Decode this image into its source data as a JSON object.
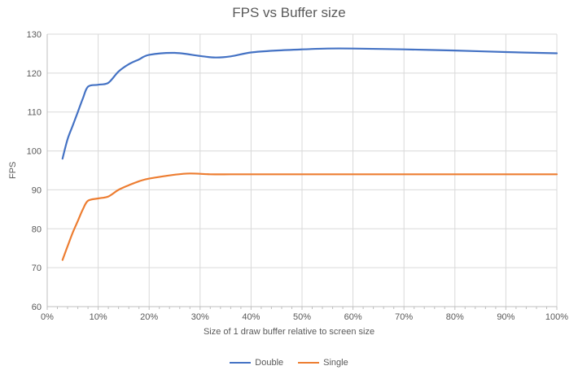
{
  "chart_data": {
    "type": "line",
    "title": "FPS vs Buffer size",
    "xlabel": "Size of 1 draw buffer relative to screen size",
    "ylabel": "FPS",
    "xlim": [
      0,
      100
    ],
    "ylim": [
      60,
      130
    ],
    "grid": true,
    "legend_position": "bottom",
    "x_ticks": [
      {
        "value": 0,
        "label": "0%"
      },
      {
        "value": 10,
        "label": "10%"
      },
      {
        "value": 20,
        "label": "20%"
      },
      {
        "value": 30,
        "label": "30%"
      },
      {
        "value": 40,
        "label": "40%"
      },
      {
        "value": 50,
        "label": "50%"
      },
      {
        "value": 60,
        "label": "60%"
      },
      {
        "value": 70,
        "label": "70%"
      },
      {
        "value": 80,
        "label": "80%"
      },
      {
        "value": 90,
        "label": "90%"
      },
      {
        "value": 100,
        "label": "100%"
      }
    ],
    "x_minor_tick_step": 2,
    "y_ticks": [
      60,
      70,
      80,
      90,
      100,
      110,
      120,
      130
    ],
    "series": [
      {
        "name": "Double",
        "color": "#4472C4",
        "x": [
          3,
          4,
          5,
          6,
          7,
          8,
          10,
          12,
          14,
          16,
          18,
          20,
          25,
          30,
          33,
          36,
          40,
          45,
          50,
          55,
          60,
          70,
          80,
          90,
          100
        ],
        "y": [
          98,
          103,
          106.5,
          110,
          113.5,
          116.5,
          117,
          117.5,
          120.4,
          122.3,
          123.5,
          124.7,
          125.2,
          124.4,
          124,
          124.3,
          125.3,
          125.8,
          126.1,
          126.3,
          126.3,
          126.1,
          125.8,
          125.4,
          125.1
        ]
      },
      {
        "name": "Single",
        "color": "#ED7D31",
        "x": [
          3,
          4,
          5,
          6,
          7,
          8,
          10,
          12,
          14,
          16,
          18,
          20,
          25,
          28,
          32,
          36,
          40,
          45,
          50,
          55,
          60,
          70,
          80,
          90,
          100
        ],
        "y": [
          72,
          75.5,
          79,
          82,
          85,
          87.2,
          87.8,
          88.3,
          90,
          91.2,
          92.2,
          92.9,
          93.9,
          94.2,
          94,
          94,
          94,
          94,
          94,
          94,
          94,
          94,
          94,
          94,
          94
        ]
      }
    ],
    "style": {
      "gridline_color": "#D9D9D9",
      "axis_color": "#BFBFBF",
      "text_color": "#595959",
      "title_color": "#595959",
      "background": "#FFFFFF"
    }
  }
}
